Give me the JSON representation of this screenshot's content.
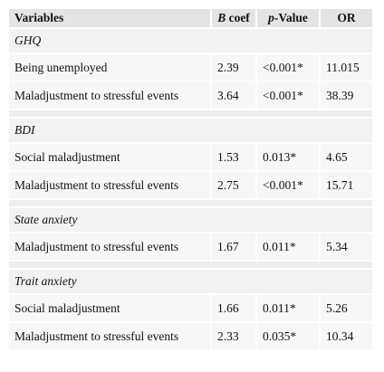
{
  "header": {
    "variables": "Variables",
    "b_coef_italic": "B",
    "b_coef_rest": " coef",
    "p_italic": "p",
    "p_rest": "-Value",
    "or": "OR"
  },
  "sections": [
    {
      "title": "GHQ",
      "rows": [
        {
          "variable": "Being unemployed",
          "b": "2.39",
          "p": "<0.001*",
          "or": "11.015"
        },
        {
          "variable": "Maladjustment to stressful events",
          "b": "3.64",
          "p": "<0.001*",
          "or": "38.39"
        }
      ]
    },
    {
      "title": "BDI",
      "rows": [
        {
          "variable": "Social maladjustment",
          "b": "1.53",
          "p": "0.013*",
          "or": "4.65"
        },
        {
          "variable": "Maladjustment to stressful events",
          "b": "2.75",
          "p": "<0.001*",
          "or": "15.71"
        }
      ]
    },
    {
      "title": "State anxiety",
      "rows": [
        {
          "variable": "Maladjustment to stressful events",
          "b": "1.67",
          "p": "0.011*",
          "or": "5.34"
        }
      ]
    },
    {
      "title": "Trait anxiety",
      "rows": [
        {
          "variable": "Social maladjustment",
          "b": "1.66",
          "p": "0.011*",
          "or": "5.26"
        },
        {
          "variable": "Maladjustment to stressful events",
          "b": "2.33",
          "p": "0.035*",
          "or": "10.34"
        }
      ]
    }
  ]
}
